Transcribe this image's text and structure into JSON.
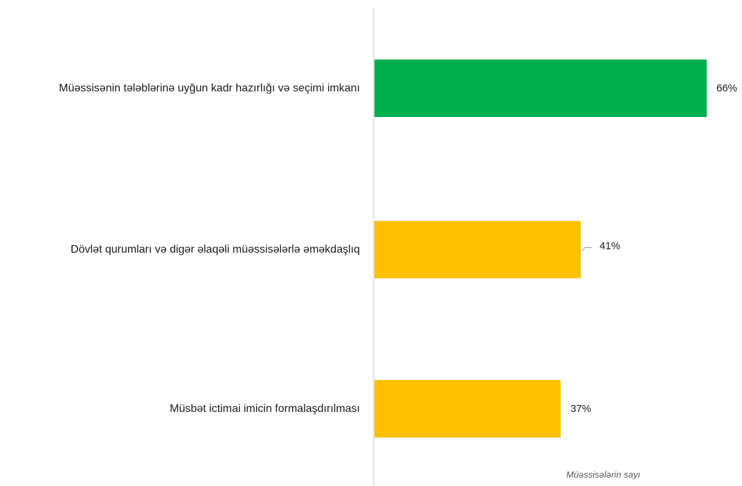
{
  "chart_data": {
    "type": "bar",
    "orientation": "horizontal",
    "categories": [
      "Müəssisənin tələblərinə uyğun kadr hazırlığı və seçimi imkanı",
      "Dövlət qurumları və digər əlaqəli müəssisələrlə əməkdaşlıq",
      "Müsbət ictimai imicin formalaşdırılması"
    ],
    "values": [
      66,
      41,
      37
    ],
    "value_labels": [
      "66%",
      "41%",
      "37%"
    ],
    "bar_colors": [
      "#00B050",
      "#FFC000",
      "#FFC000"
    ],
    "xlabel": "Müəssisələrin sayı",
    "xlim": [
      0,
      100
    ],
    "grid": false,
    "legend": "none"
  }
}
